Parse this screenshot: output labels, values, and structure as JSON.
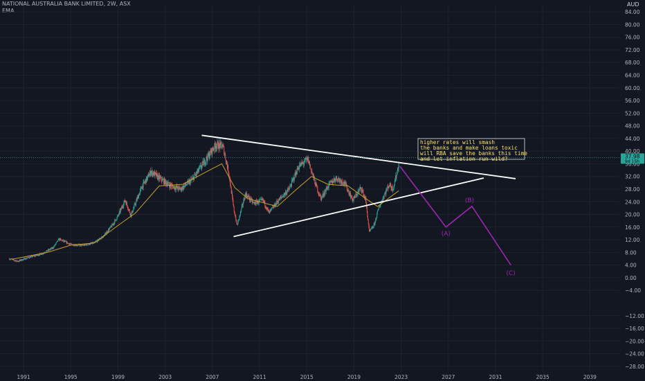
{
  "header": {
    "symbol_line": "NATIONAL AUSTRALIA BANK LIMITED, 2W, ASX",
    "indicator": "EMA",
    "currency": "AUD"
  },
  "colors": {
    "background": "#131722",
    "grid": "#1e222d",
    "up": "#26a69a",
    "down": "#ef5350",
    "ema": "#c9a227",
    "trendline": "#ffffff",
    "wave": "#9c27b0",
    "price_tag": "#26a69a",
    "note_text": "#ffe45c"
  },
  "price_tag": {
    "value": "37.98",
    "sub": "9d 15h"
  },
  "note": {
    "lines": [
      "higher rates will smash",
      "the banks and make loans toxic",
      "will RBA save the banks this time",
      "and let inflation run wild?"
    ]
  },
  "chart_data": {
    "type": "candlestick",
    "title": "NATIONAL AUSTRALIA BANK LIMITED, 2W, ASX",
    "indicator": "EMA",
    "y_unit": "AUD",
    "ylim": [
      -30,
      86
    ],
    "xlim": [
      1989.0,
      2041.5
    ],
    "x_ticks": [
      "1991",
      "1995",
      "1999",
      "2003",
      "2007",
      "2011",
      "2015",
      "2019",
      "2023",
      "2027",
      "2031",
      "2035",
      "2039"
    ],
    "y_ticks": [
      "84.00",
      "80.00",
      "76.00",
      "72.00",
      "68.00",
      "64.00",
      "60.00",
      "56.00",
      "52.00",
      "48.00",
      "44.00",
      "40.00",
      "36.00",
      "32.00",
      "28.00",
      "24.00",
      "20.00",
      "16.00",
      "12.00",
      "8.00",
      "4.00",
      "0.00",
      "−4.00",
      "−12.00",
      "−16.00",
      "−20.00",
      "−24.00",
      "−28.00"
    ],
    "price_path": [
      [
        1989.8,
        6.0
      ],
      [
        1990.5,
        5.2
      ],
      [
        1991.5,
        6.5
      ],
      [
        1992.5,
        7.5
      ],
      [
        1993.5,
        9.5
      ],
      [
        1994.0,
        12.2
      ],
      [
        1995.0,
        10.5
      ],
      [
        1996.0,
        10.2
      ],
      [
        1997.0,
        11.0
      ],
      [
        1997.8,
        13.2
      ],
      [
        1998.5,
        16.5
      ],
      [
        1999.0,
        19.5
      ],
      [
        1999.6,
        24.5
      ],
      [
        2000.1,
        19.8
      ],
      [
        2001.0,
        28.5
      ],
      [
        2001.8,
        33.5
      ],
      [
        2002.5,
        31.5
      ],
      [
        2003.5,
        29.0
      ],
      [
        2004.3,
        28.0
      ],
      [
        2005.3,
        31.0
      ],
      [
        2006.3,
        36.5
      ],
      [
        2007.3,
        42.0
      ],
      [
        2007.9,
        41.5
      ],
      [
        2008.4,
        33.0
      ],
      [
        2008.8,
        22.0
      ],
      [
        2009.1,
        16.5
      ],
      [
        2009.8,
        26.5
      ],
      [
        2010.5,
        23.5
      ],
      [
        2011.3,
        24.5
      ],
      [
        2011.8,
        20.5
      ],
      [
        2012.5,
        24.0
      ],
      [
        2013.5,
        28.0
      ],
      [
        2014.3,
        35.0
      ],
      [
        2015.1,
        37.5
      ],
      [
        2015.7,
        30.0
      ],
      [
        2016.2,
        25.0
      ],
      [
        2016.9,
        29.5
      ],
      [
        2017.5,
        31.5
      ],
      [
        2018.2,
        30.0
      ],
      [
        2018.9,
        24.5
      ],
      [
        2019.6,
        28.5
      ],
      [
        2020.0,
        24.5
      ],
      [
        2020.3,
        14.5
      ],
      [
        2020.7,
        16.5
      ],
      [
        2021.1,
        22.0
      ],
      [
        2021.6,
        26.5
      ],
      [
        2022.0,
        29.5
      ],
      [
        2022.3,
        28.0
      ],
      [
        2022.6,
        32.5
      ],
      [
        2022.8,
        36.0
      ]
    ],
    "ema_path": [
      [
        1990.0,
        5.8
      ],
      [
        1993.0,
        8.0
      ],
      [
        1995.0,
        10.3
      ],
      [
        1997.0,
        11.0
      ],
      [
        1999.0,
        16.5
      ],
      [
        2000.5,
        20.5
      ],
      [
        2002.5,
        29.0
      ],
      [
        2004.5,
        29.5
      ],
      [
        2006.5,
        33.5
      ],
      [
        2007.8,
        36.0
      ],
      [
        2008.9,
        28.5
      ],
      [
        2010.0,
        25.0
      ],
      [
        2011.5,
        23.5
      ],
      [
        2012.5,
        22.5
      ],
      [
        2014.0,
        27.5
      ],
      [
        2015.4,
        32.0
      ],
      [
        2016.8,
        29.5
      ],
      [
        2018.5,
        29.0
      ],
      [
        2020.0,
        25.0
      ],
      [
        2021.0,
        22.5
      ],
      [
        2022.8,
        27.5
      ]
    ],
    "trendlines": [
      {
        "name": "upper",
        "from": [
          2006.1,
          45.0
        ],
        "to": [
          2032.7,
          31.3
        ]
      },
      {
        "name": "lower",
        "from": [
          2008.8,
          13.0
        ],
        "to": [
          2030.0,
          31.5
        ]
      }
    ],
    "wave_projection": [
      [
        2022.9,
        35.2
      ],
      [
        2026.8,
        16.0
      ],
      [
        2029.0,
        22.6
      ],
      [
        2032.3,
        4.0
      ]
    ],
    "wave_labels": [
      {
        "text": "(A)",
        "x": 2026.8,
        "y": 14.0
      },
      {
        "text": "(B)",
        "x": 2028.8,
        "y": 24.5
      },
      {
        "text": "(C)",
        "x": 2032.3,
        "y": 1.5
      }
    ],
    "last_price": 37.98
  }
}
